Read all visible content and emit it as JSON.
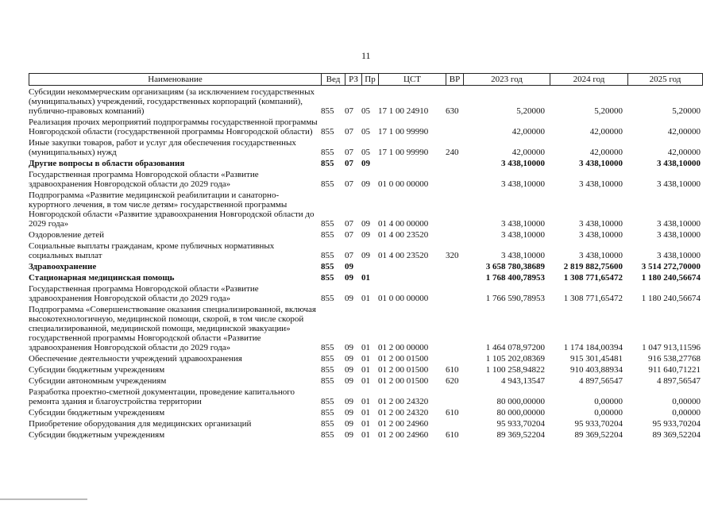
{
  "page_number": "11",
  "header": {
    "name": "Наименование",
    "ved": "Вед",
    "rz": "РЗ",
    "pr": "Пр",
    "cst": "ЦСТ",
    "vr": "ВР",
    "y2023": "2023 год",
    "y2024": "2024 год",
    "y2025": "2025 год"
  },
  "rows": [
    {
      "name": "Субсидии некоммерческим организациям (за исключением государственных (муниципальных) учреждений, государственных корпораций (компаний), публично-правовых компаний)",
      "ved": "855",
      "rz": "07",
      "pr": "05",
      "cst": "17 1 00 24910",
      "vr": "630",
      "y2023": "5,20000",
      "y2024": "5,20000",
      "y2025": "5,20000",
      "bold": false
    },
    {
      "name": "Реализация прочих мероприятий подпрограммы государственной программы Новгородской области (государственной программы Новгородской области)",
      "ved": "855",
      "rz": "07",
      "pr": "05",
      "cst": "17 1 00 99990",
      "vr": "",
      "y2023": "42,00000",
      "y2024": "42,00000",
      "y2025": "42,00000",
      "bold": false
    },
    {
      "name": "Иные закупки товаров, работ и услуг для обеспечения государственных (муниципальных) нужд",
      "ved": "855",
      "rz": "07",
      "pr": "05",
      "cst": "17 1 00 99990",
      "vr": "240",
      "y2023": "42,00000",
      "y2024": "42,00000",
      "y2025": "42,00000",
      "bold": false
    },
    {
      "name": "Другие вопросы в области образования",
      "ved": "855",
      "rz": "07",
      "pr": "09",
      "cst": "",
      "vr": "",
      "y2023": "3 438,10000",
      "y2024": "3 438,10000",
      "y2025": "3 438,10000",
      "bold": true
    },
    {
      "name": "Государственная программа Новгородской области «Развитие здравоохранения Новгородской области до 2029 года»",
      "ved": "855",
      "rz": "07",
      "pr": "09",
      "cst": "01 0 00 00000",
      "vr": "",
      "y2023": "3 438,10000",
      "y2024": "3 438,10000",
      "y2025": "3 438,10000",
      "bold": false
    },
    {
      "name": "Подпрограмма «Развитие медицинской реабилитации и санаторно-курортного лечения, в том числе детям» государственной программы Новгородской области «Развитие здравоохранения Новгородской области до 2029 года»",
      "ved": "855",
      "rz": "07",
      "pr": "09",
      "cst": "01 4 00 00000",
      "vr": "",
      "y2023": "3 438,10000",
      "y2024": "3 438,10000",
      "y2025": "3 438,10000",
      "bold": false
    },
    {
      "name": "Оздоровление детей",
      "ved": "855",
      "rz": "07",
      "pr": "09",
      "cst": "01 4 00 23520",
      "vr": "",
      "y2023": "3 438,10000",
      "y2024": "3 438,10000",
      "y2025": "3 438,10000",
      "bold": false
    },
    {
      "name": "Социальные выплаты гражданам, кроме публичных нормативных социальных выплат",
      "ved": "855",
      "rz": "07",
      "pr": "09",
      "cst": "01 4 00 23520",
      "vr": "320",
      "y2023": "3 438,10000",
      "y2024": "3 438,10000",
      "y2025": "3 438,10000",
      "bold": false
    },
    {
      "name": "Здравоохранение",
      "ved": "855",
      "rz": "09",
      "pr": "",
      "cst": "",
      "vr": "",
      "y2023": "3 658 780,38689",
      "y2024": "2 819 882,75600",
      "y2025": "3 514 272,70000",
      "bold": true
    },
    {
      "name": "Стационарная медицинская помощь",
      "ved": "855",
      "rz": "09",
      "pr": "01",
      "cst": "",
      "vr": "",
      "y2023": "1 768 400,78953",
      "y2024": "1 308 771,65472",
      "y2025": "1 180 240,56674",
      "bold": true
    },
    {
      "name": "Государственная программа Новгородской области «Развитие здравоохранения Новгородской области до 2029 года»",
      "ved": "855",
      "rz": "09",
      "pr": "01",
      "cst": "01 0 00 00000",
      "vr": "",
      "y2023": "1 766 590,78953",
      "y2024": "1 308 771,65472",
      "y2025": "1 180 240,56674",
      "bold": false
    },
    {
      "name": "Подпрограмма «Совершенствование оказания специализированной, включая высокотехнологичную, медицинской помощи, скорой, в том числе скорой специализированной, медицинской помощи, медицинской эвакуации» государственной программы Новгородской области «Развитие здравоохранения Новгородской области до 2029 года»",
      "ved": "855",
      "rz": "09",
      "pr": "01",
      "cst": "01 2 00 00000",
      "vr": "",
      "y2023": "1 464 078,97200",
      "y2024": "1 174 184,00394",
      "y2025": "1 047 913,11596",
      "bold": false
    },
    {
      "name": "Обеспечение деятельности учреждений здравоохранения",
      "ved": "855",
      "rz": "09",
      "pr": "01",
      "cst": "01 2 00 01500",
      "vr": "",
      "y2023": "1 105 202,08369",
      "y2024": "915 301,45481",
      "y2025": "916 538,27768",
      "bold": false
    },
    {
      "name": "Субсидии бюджетным учреждениям",
      "ved": "855",
      "rz": "09",
      "pr": "01",
      "cst": "01 2 00 01500",
      "vr": "610",
      "y2023": "1 100 258,94822",
      "y2024": "910 403,88934",
      "y2025": "911 640,71221",
      "bold": false
    },
    {
      "name": "Субсидии автономным учреждениям",
      "ved": "855",
      "rz": "09",
      "pr": "01",
      "cst": "01 2 00 01500",
      "vr": "620",
      "y2023": "4 943,13547",
      "y2024": "4 897,56547",
      "y2025": "4 897,56547",
      "bold": false
    },
    {
      "name": "Разработка проектно-сметной документации, проведение капитального ремонта здания и благоустройства территории",
      "ved": "855",
      "rz": "09",
      "pr": "01",
      "cst": "01 2 00 24320",
      "vr": "",
      "y2023": "80 000,00000",
      "y2024": "0,00000",
      "y2025": "0,00000",
      "bold": false
    },
    {
      "name": "Субсидии бюджетным учреждениям",
      "ved": "855",
      "rz": "09",
      "pr": "01",
      "cst": "01 2 00 24320",
      "vr": "610",
      "y2023": "80 000,00000",
      "y2024": "0,00000",
      "y2025": "0,00000",
      "bold": false
    },
    {
      "name": "Приобретение оборудования для медицинских организаций",
      "ved": "855",
      "rz": "09",
      "pr": "01",
      "cst": "01 2 00 24960",
      "vr": "",
      "y2023": "95 933,70204",
      "y2024": "95 933,70204",
      "y2025": "95 933,70204",
      "bold": false
    },
    {
      "name": "Субсидии бюджетным учреждениям",
      "ved": "855",
      "rz": "09",
      "pr": "01",
      "cst": "01 2 00 24960",
      "vr": "610",
      "y2023": "89 369,52204",
      "y2024": "89 369,52204",
      "y2025": "89 369,52204",
      "bold": false
    }
  ]
}
